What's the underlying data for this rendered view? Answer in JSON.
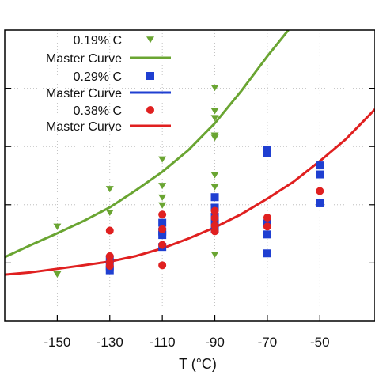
{
  "chart_data": {
    "type": "scatter",
    "title": "",
    "xlabel": "T (°C)",
    "ylabel": "",
    "xlim": [
      -170,
      -29
    ],
    "ylim": [
      0,
      1
    ],
    "x_ticks": [
      -150,
      -130,
      -110,
      -90,
      -70,
      -50
    ],
    "x_tick_labels": [
      "-150",
      "-130",
      "-110",
      "-90",
      "-70",
      "-50"
    ],
    "y_ticks": [
      0.2,
      0.4,
      0.6,
      0.8
    ],
    "grid": true,
    "legend_position": "top-left",
    "series": [
      {
        "name": "0.19% C",
        "kind": "points",
        "marker": "triangle-down",
        "color": "#6aa532",
        "points": [
          [
            -150,
            0.325
          ],
          [
            -150,
            0.161
          ],
          [
            -130,
            0.454
          ],
          [
            -130,
            0.373
          ],
          [
            -110,
            0.556
          ],
          [
            -110,
            0.465
          ],
          [
            -110,
            0.425
          ],
          [
            -110,
            0.398
          ],
          [
            -90,
            0.802
          ],
          [
            -90,
            0.722
          ],
          [
            -90,
            0.698
          ],
          [
            -90,
            0.638
          ],
          [
            -90,
            0.63
          ],
          [
            -90,
            0.502
          ],
          [
            -90,
            0.461
          ],
          [
            -90,
            0.229
          ]
        ]
      },
      {
        "name": "Master Curve",
        "kind": "curve",
        "color": "#6aa532",
        "x": [
          -170,
          -160,
          -150,
          -140,
          -130,
          -120,
          -110,
          -100,
          -90,
          -80,
          -70,
          -62
        ],
        "y": [
          0.22,
          0.262,
          0.302,
          0.344,
          0.391,
          0.45,
          0.513,
          0.588,
          0.68,
          0.79,
          0.91,
          1.0
        ]
      },
      {
        "name": "0.29% C",
        "kind": "points",
        "marker": "square",
        "color": "#1f3fd1",
        "points": [
          [
            -130,
            0.213
          ],
          [
            -130,
            0.189
          ],
          [
            -130,
            0.175
          ],
          [
            -110,
            0.338
          ],
          [
            -110,
            0.308
          ],
          [
            -110,
            0.296
          ],
          [
            -110,
            0.255
          ],
          [
            -90,
            0.426
          ],
          [
            -90,
            0.39
          ],
          [
            -90,
            0.359
          ],
          [
            -90,
            0.334
          ],
          [
            -90,
            0.317
          ],
          [
            -70,
            0.589
          ],
          [
            -70,
            0.578
          ],
          [
            -70,
            0.336
          ],
          [
            -70,
            0.298
          ],
          [
            -70,
            0.233
          ],
          [
            -50,
            0.535
          ],
          [
            -50,
            0.504
          ],
          [
            -50,
            0.405
          ]
        ]
      },
      {
        "name": "Master Curve",
        "kind": "curve",
        "color": "#1f3fd1",
        "x": [],
        "y": []
      },
      {
        "name": "0.38% C",
        "kind": "points",
        "marker": "circle",
        "color": "#e02020",
        "points": [
          [
            -130,
            0.311
          ],
          [
            -130,
            0.223
          ],
          [
            -130,
            0.203
          ],
          [
            -130,
            0.19
          ],
          [
            -110,
            0.366
          ],
          [
            -110,
            0.316
          ],
          [
            -110,
            0.262
          ],
          [
            -110,
            0.192
          ],
          [
            -90,
            0.379
          ],
          [
            -90,
            0.355
          ],
          [
            -90,
            0.328
          ],
          [
            -90,
            0.309
          ],
          [
            -70,
            0.356
          ],
          [
            -70,
            0.325
          ],
          [
            -50,
            0.447
          ]
        ]
      },
      {
        "name": "Master Curve",
        "kind": "curve",
        "color": "#e02020",
        "x": [
          -170,
          -160,
          -150,
          -140,
          -130,
          -120,
          -110,
          -100,
          -90,
          -80,
          -70,
          -60,
          -50,
          -40,
          -29
        ],
        "y": [
          0.16,
          0.168,
          0.18,
          0.192,
          0.205,
          0.224,
          0.25,
          0.284,
          0.322,
          0.367,
          0.421,
          0.479,
          0.55,
          0.626,
          0.728
        ]
      }
    ]
  }
}
